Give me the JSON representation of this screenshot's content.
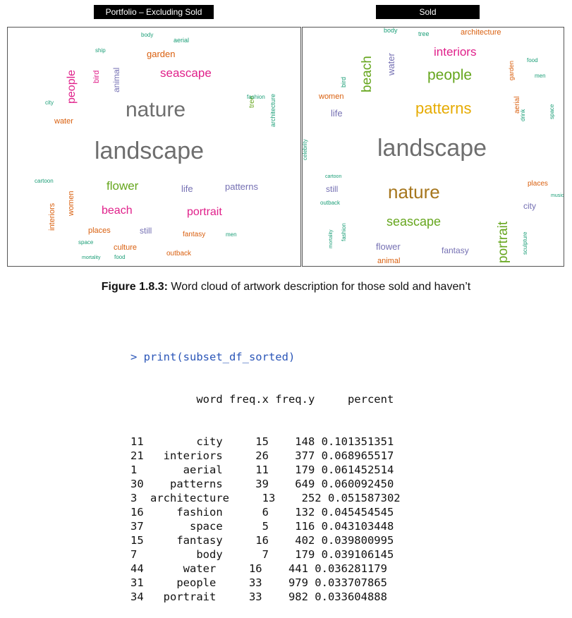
{
  "panels": {
    "left_title": "Portfolio – Excluding Sold",
    "right_title": "Sold"
  },
  "left_cloud": [
    {
      "text": "nature",
      "size": 30,
      "color": "#6e6e6e"
    },
    {
      "text": "landscape",
      "size": 34,
      "color": "#6e6e6e"
    },
    {
      "text": "seascape",
      "size": 17,
      "color": "#e0208a"
    },
    {
      "text": "garden",
      "size": 13,
      "color": "#d95f0e"
    },
    {
      "text": "people",
      "size": 16,
      "color": "#e0208a",
      "vertical": true
    },
    {
      "text": "bird",
      "size": 11,
      "color": "#e0208a",
      "vertical": true
    },
    {
      "text": "animal",
      "size": 12,
      "color": "#7570b3",
      "vertical": true
    },
    {
      "text": "flower",
      "size": 17,
      "color": "#66a61e"
    },
    {
      "text": "life",
      "size": 13,
      "color": "#7570b3"
    },
    {
      "text": "patterns",
      "size": 13,
      "color": "#7570b3"
    },
    {
      "text": "beach",
      "size": 16,
      "color": "#e0208a"
    },
    {
      "text": "portrait",
      "size": 16,
      "color": "#e0208a"
    },
    {
      "text": "interiors",
      "size": 11,
      "color": "#d95f0e",
      "vertical": true
    },
    {
      "text": "women",
      "size": 11,
      "color": "#d95f0e",
      "vertical": true
    },
    {
      "text": "places",
      "size": 11,
      "color": "#d95f0e"
    },
    {
      "text": "still",
      "size": 12,
      "color": "#7570b3"
    },
    {
      "text": "fantasy",
      "size": 10,
      "color": "#d95f0e"
    },
    {
      "text": "culture",
      "size": 11,
      "color": "#d95f0e"
    },
    {
      "text": "outback",
      "size": 10,
      "color": "#d95f0e"
    },
    {
      "text": "water",
      "size": 11,
      "color": "#d95f0e"
    },
    {
      "text": "city",
      "size": 8,
      "color": "#1b9e77"
    },
    {
      "text": "tree",
      "size": 10,
      "color": "#66a61e",
      "vertical": true
    },
    {
      "text": "architecture",
      "size": 9,
      "color": "#1b9e77",
      "vertical": true
    },
    {
      "text": "body",
      "size": 8,
      "color": "#1b9e77"
    },
    {
      "text": "aerial",
      "size": 9,
      "color": "#1b9e77"
    },
    {
      "text": "ship",
      "size": 8,
      "color": "#1b9e77"
    },
    {
      "text": "food",
      "size": 8,
      "color": "#1b9e77"
    },
    {
      "text": "men",
      "size": 8,
      "color": "#1b9e77"
    },
    {
      "text": "space",
      "size": 8,
      "color": "#1b9e77"
    },
    {
      "text": "fashion",
      "size": 8,
      "color": "#1b9e77"
    },
    {
      "text": "cartoon",
      "size": 8,
      "color": "#1b9e77"
    },
    {
      "text": "mortality",
      "size": 7,
      "color": "#1b9e77"
    }
  ],
  "right_cloud": [
    {
      "text": "landscape",
      "size": 34,
      "color": "#6e6e6e"
    },
    {
      "text": "nature",
      "size": 26,
      "color": "#a6761d"
    },
    {
      "text": "patterns",
      "size": 22,
      "color": "#e6ab02"
    },
    {
      "text": "people",
      "size": 21,
      "color": "#66a61e"
    },
    {
      "text": "interiors",
      "size": 17,
      "color": "#e0208a"
    },
    {
      "text": "seascape",
      "size": 18,
      "color": "#66a61e"
    },
    {
      "text": "beach",
      "size": 19,
      "color": "#66a61e",
      "vertical": true
    },
    {
      "text": "portrait",
      "size": 19,
      "color": "#66a61e",
      "vertical": true
    },
    {
      "text": "architecture",
      "size": 11,
      "color": "#d95f0e"
    },
    {
      "text": "water",
      "size": 13,
      "color": "#7570b3",
      "vertical": true
    },
    {
      "text": "women",
      "size": 11,
      "color": "#d95f0e"
    },
    {
      "text": "life",
      "size": 13,
      "color": "#7570b3"
    },
    {
      "text": "still",
      "size": 12,
      "color": "#7570b3"
    },
    {
      "text": "city",
      "size": 12,
      "color": "#7570b3"
    },
    {
      "text": "flower",
      "size": 13,
      "color": "#7570b3"
    },
    {
      "text": "fantasy",
      "size": 12,
      "color": "#7570b3"
    },
    {
      "text": "animal",
      "size": 11,
      "color": "#d95f0e"
    },
    {
      "text": "places",
      "size": 10,
      "color": "#d95f0e"
    },
    {
      "text": "aerial",
      "size": 10,
      "color": "#d95f0e",
      "vertical": true
    },
    {
      "text": "garden",
      "size": 9,
      "color": "#d95f0e",
      "vertical": true
    },
    {
      "text": "tree",
      "size": 9,
      "color": "#1b9e77"
    },
    {
      "text": "body",
      "size": 9,
      "color": "#1b9e77"
    },
    {
      "text": "bird",
      "size": 9,
      "color": "#1b9e77",
      "vertical": true
    },
    {
      "text": "food",
      "size": 8,
      "color": "#1b9e77"
    },
    {
      "text": "men",
      "size": 8,
      "color": "#1b9e77"
    },
    {
      "text": "outback",
      "size": 8,
      "color": "#1b9e77"
    },
    {
      "text": "celebrity",
      "size": 8,
      "color": "#1b9e77",
      "vertical": true
    },
    {
      "text": "fashion",
      "size": 8,
      "color": "#1b9e77",
      "vertical": true
    },
    {
      "text": "space",
      "size": 8,
      "color": "#1b9e77",
      "vertical": true
    },
    {
      "text": "sculpture",
      "size": 8,
      "color": "#1b9e77",
      "vertical": true
    },
    {
      "text": "mortality",
      "size": 7,
      "color": "#1b9e77",
      "vertical": true
    },
    {
      "text": "drink",
      "size": 8,
      "color": "#1b9e77",
      "vertical": true
    },
    {
      "text": "cartoon",
      "size": 7,
      "color": "#1b9e77"
    },
    {
      "text": "music",
      "size": 7,
      "color": "#1b9e77"
    }
  ],
  "caption": {
    "label": "Figure 1.8.3:",
    "text": " Word cloud of artwork description for those sold and haven’t"
  },
  "console": {
    "command": "> print(subset_df_sorted)",
    "header": "          word freq.x freq.y     percent",
    "rows": [
      "11        city     15    148 0.101351351",
      "21   interiors     26    377 0.068965517",
      "1       aerial     11    179 0.061452514",
      "30    patterns     39    649 0.060092450",
      "3  architecture     13    252 0.051587302",
      "16     fashion      6    132 0.045454545",
      "37       space      5    116 0.043103448",
      "15     fantasy     16    402 0.039800995",
      "7         body      7    179 0.039106145",
      "44      water     16    441 0.036281179",
      "31     people     33    979 0.033707865",
      "34   portrait     33    982 0.033604888"
    ]
  }
}
